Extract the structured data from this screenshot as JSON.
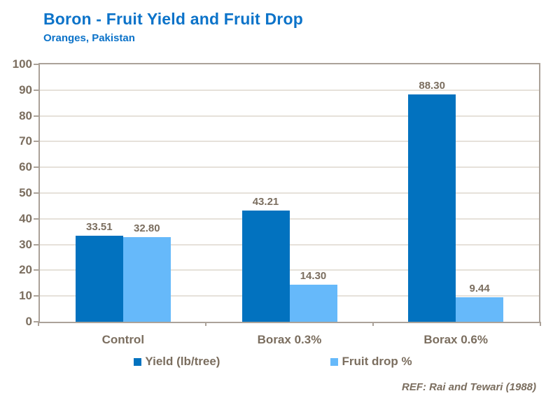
{
  "header": {
    "title": "Boron - Fruit Yield and Fruit Drop",
    "subtitle": "Oranges, Pakistan"
  },
  "chart_data": {
    "type": "bar",
    "title": "Boron - Fruit Yield and Fruit Drop",
    "subtitle": "Oranges, Pakistan",
    "categories": [
      "Control",
      "Borax 0.3%",
      "Borax 0.6%"
    ],
    "series": [
      {
        "name": "Yield (lb/tree)",
        "color": "#0272bf",
        "values": [
          33.51,
          43.21,
          88.3
        ]
      },
      {
        "name": "Fruit drop %",
        "color": "#66b9fa",
        "values": [
          32.8,
          14.3,
          9.44
        ]
      }
    ],
    "value_label_decimals": 2,
    "ylim": [
      0,
      100
    ],
    "ytick_step": 10,
    "grid": true,
    "legend_position": "bottom"
  },
  "footer": {
    "ref": "REF: Rai and Tewari (1988)"
  },
  "colors": {
    "title_blue": "#0c73c9",
    "series_yield": "#0272bf",
    "series_fruit_drop": "#66b9fa",
    "text_gray": "#7b6e5f",
    "axis_gray": "#aba299",
    "grid_gray": "#e6e1da"
  }
}
